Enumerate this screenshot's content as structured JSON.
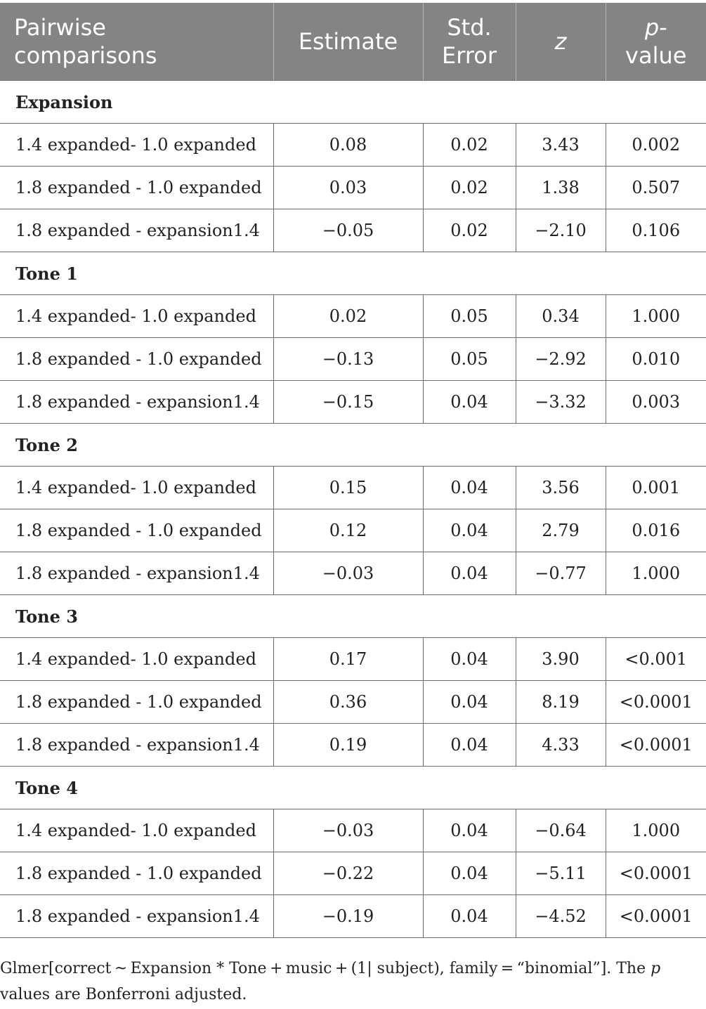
{
  "table": {
    "headers": [
      "Pairwise comparisons",
      "Estimate",
      "Std. Error",
      "z",
      "p-value"
    ],
    "groups": [
      {
        "label": "Expansion",
        "rows": [
          [
            "1.4 expanded- 1.0 expanded",
            "0.08",
            "0.02",
            "3.43",
            "0.002"
          ],
          [
            "1.8 expanded - 1.0 expanded",
            "0.03",
            "0.02",
            "1.38",
            "0.507"
          ],
          [
            "1.8 expanded - expansion1.4",
            "−0.05",
            "0.02",
            "−2.10",
            "0.106"
          ]
        ]
      },
      {
        "label": "Tone 1",
        "rows": [
          [
            "1.4 expanded- 1.0 expanded",
            "0.02",
            "0.05",
            "0.34",
            "1.000"
          ],
          [
            "1.8 expanded - 1.0 expanded",
            "−0.13",
            "0.05",
            "−2.92",
            "0.010"
          ],
          [
            "1.8 expanded - expansion1.4",
            "−0.15",
            "0.04",
            "−3.32",
            "0.003"
          ]
        ]
      },
      {
        "label": "Tone 2",
        "rows": [
          [
            "1.4 expanded- 1.0 expanded",
            "0.15",
            "0.04",
            "3.56",
            "0.001"
          ],
          [
            "1.8 expanded - 1.0 expanded",
            "0.12",
            "0.04",
            "2.79",
            "0.016"
          ],
          [
            "1.8 expanded - expansion1.4",
            "−0.03",
            "0.04",
            "−0.77",
            "1.000"
          ]
        ]
      },
      {
        "label": "Tone 3",
        "rows": [
          [
            "1.4 expanded- 1.0 expanded",
            "0.17",
            "0.04",
            "3.90",
            "<0.001"
          ],
          [
            "1.8 expanded - 1.0 expanded",
            "0.36",
            "0.04",
            "8.19",
            "<0.0001"
          ],
          [
            "1.8 expanded - expansion1.4",
            "0.19",
            "0.04",
            "4.33",
            "<0.0001"
          ]
        ]
      },
      {
        "label": "Tone 4",
        "rows": [
          [
            "1.4 expanded- 1.0 expanded",
            "−0.03",
            "0.04",
            "−0.64",
            "1.000"
          ],
          [
            "1.8 expanded - 1.0 expanded",
            "−0.22",
            "0.04",
            "−5.11",
            "<0.0001"
          ],
          [
            "1.8 expanded - expansion1.4",
            "−0.19",
            "0.04",
            "−4.52",
            "<0.0001"
          ]
        ]
      }
    ]
  },
  "footnote": {
    "part1": "Glmer[correct ~ Expansion * Tone + music + (1| subject), family = “binomial”]. The ",
    "italic": "p",
    "part2": " values are Bonferroni adjusted."
  },
  "colors": {
    "header_bg": "#848484",
    "header_text": "#ffffff",
    "rule": "#6e6e6e"
  }
}
